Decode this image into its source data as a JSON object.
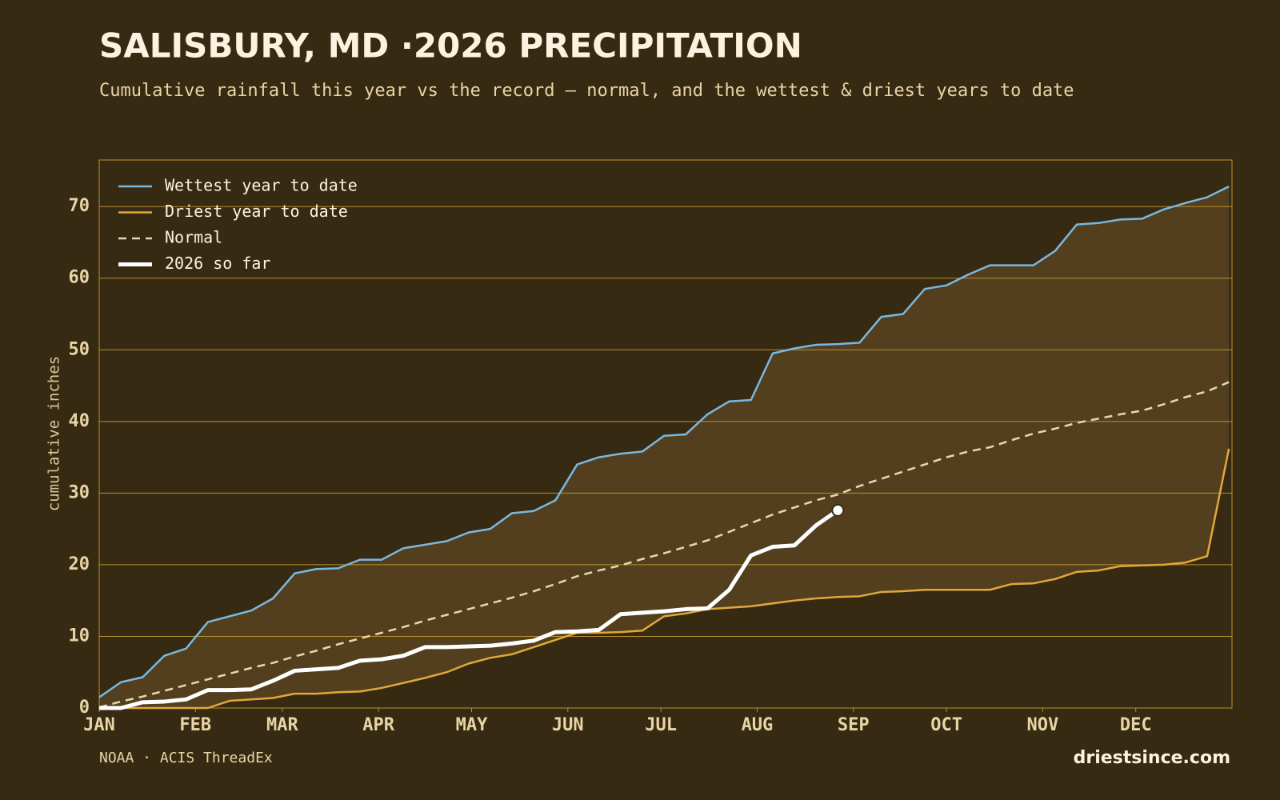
{
  "chart_data": {
    "type": "line",
    "title": "SALISBURY, MD ·2026 PRECIPITATION",
    "subtitle": "Cumulative rainfall this year vs the record — normal, and the wettest & driest years to date",
    "y_label": "cumulative inches",
    "source": "NOAA · ACIS ThreadEx",
    "brand": "driestsince.com",
    "x": [
      1,
      8,
      15,
      22,
      29,
      36,
      43,
      50,
      57,
      64,
      71,
      78,
      85,
      92,
      99,
      106,
      113,
      120,
      127,
      134,
      141,
      148,
      155,
      162,
      169,
      176,
      183,
      190,
      197,
      204,
      211,
      218,
      225,
      232,
      239,
      246,
      253,
      260,
      267,
      274,
      281,
      288,
      295,
      302,
      309,
      316,
      323,
      330,
      337,
      344,
      351,
      358,
      365
    ],
    "xlim": [
      1,
      366
    ],
    "xticks": [
      {
        "value": 1,
        "label": "JAN"
      },
      {
        "value": 32,
        "label": "FEB"
      },
      {
        "value": 60,
        "label": "MAR"
      },
      {
        "value": 91,
        "label": "APR"
      },
      {
        "value": 121,
        "label": "MAY"
      },
      {
        "value": 152,
        "label": "JUN"
      },
      {
        "value": 182,
        "label": "JUL"
      },
      {
        "value": 213,
        "label": "AUG"
      },
      {
        "value": 244,
        "label": "SEP"
      },
      {
        "value": 274,
        "label": "OCT"
      },
      {
        "value": 305,
        "label": "NOV"
      },
      {
        "value": 335,
        "label": "DEC"
      }
    ],
    "ylim": [
      0,
      76.5
    ],
    "yticks": [
      0,
      10,
      20,
      30,
      40,
      50,
      60,
      70
    ],
    "grid": true,
    "legend": "upper left",
    "band_color": "#533f1d",
    "series": [
      {
        "name": "Wettest year to date",
        "color": "#7ab8e0",
        "style": "solid",
        "values": [
          1.5,
          3.6,
          4.3,
          7.3,
          8.3,
          12,
          12.8,
          13.6,
          15.3,
          18.8,
          19.4,
          19.5,
          20.7,
          20.7,
          22.3,
          22.8,
          23.3,
          24.5,
          25,
          27.2,
          27.5,
          29,
          34,
          35,
          35.5,
          35.8,
          38,
          38.2,
          41,
          42.8,
          43,
          49.5,
          50.2,
          50.7,
          50.8,
          51,
          54.6,
          55,
          58.5,
          59,
          60.5,
          61.8,
          61.8,
          61.8,
          63.8,
          67.5,
          67.7,
          68.2,
          68.3,
          69.6,
          70.5,
          71.3,
          72.8
        ]
      },
      {
        "name": "Driest year to date",
        "color": "#e0a83a",
        "style": "solid",
        "values": [
          0,
          0,
          0,
          0,
          0,
          0,
          1.0,
          1.2,
          1.4,
          2.0,
          2.0,
          2.2,
          2.3,
          2.8,
          3.5,
          4.2,
          5.0,
          6.2,
          7.0,
          7.5,
          8.5,
          9.5,
          10.5,
          10.5,
          10.6,
          10.8,
          12.8,
          13.2,
          13.8,
          14,
          14.2,
          14.6,
          15,
          15.3,
          15.5,
          15.6,
          16.2,
          16.3,
          16.5,
          16.5,
          16.5,
          16.5,
          17.3,
          17.4,
          18,
          19,
          19.2,
          19.8,
          19.9,
          20,
          20.3,
          21.2,
          36.2
        ]
      },
      {
        "name": "Normal",
        "color": "#e8d8b0",
        "style": "dashed",
        "values": [
          0.1,
          0.9,
          1.6,
          2.4,
          3.2,
          4.0,
          4.8,
          5.6,
          6.3,
          7.2,
          8.0,
          8.9,
          9.7,
          10.5,
          11.3,
          12.2,
          13.0,
          13.8,
          14.6,
          15.4,
          16.3,
          17.3,
          18.4,
          19.2,
          19.9,
          20.8,
          21.6,
          22.5,
          23.4,
          24.6,
          25.8,
          27.0,
          28.0,
          29.0,
          29.8,
          31.0,
          32.0,
          33.0,
          34.0,
          35.0,
          35.8,
          36.4,
          37.4,
          38.3,
          39.0,
          39.8,
          40.4,
          41.0,
          41.5,
          42.4,
          43.4,
          44.2,
          45.5
        ]
      },
      {
        "name": "2026 so far",
        "color": "#ffffff",
        "style": "bold",
        "values": [
          0,
          0,
          0.8,
          0.9,
          1.2,
          2.5,
          2.5,
          2.6,
          3.8,
          5.2,
          5.4,
          5.6,
          6.6,
          6.8,
          7.3,
          8.5,
          8.5,
          8.6,
          8.7,
          9.0,
          9.4,
          10.6,
          10.7,
          10.9,
          13.1,
          13.3,
          13.5,
          13.8,
          13.9,
          16.5,
          21.3,
          22.5,
          22.7,
          25.5,
          27.6,
          null,
          null,
          null,
          null,
          null,
          null,
          null,
          null,
          null,
          null,
          null,
          null,
          null,
          null,
          null,
          null,
          null,
          null
        ]
      }
    ]
  }
}
